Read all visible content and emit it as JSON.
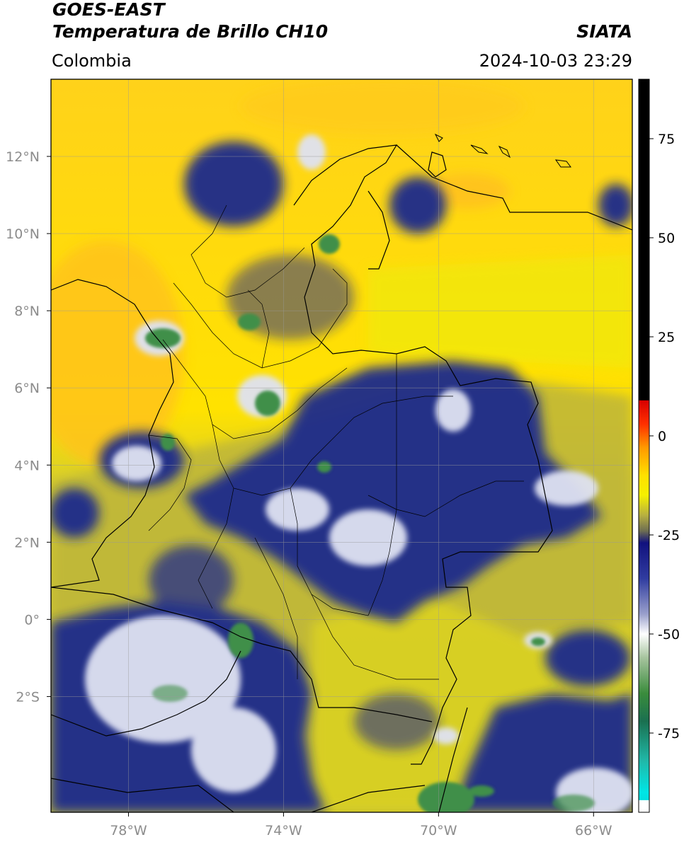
{
  "header": {
    "title_line1": "GOES-EAST",
    "title_line2": "Temperatura de Brillo CH10",
    "brand": "SIATA",
    "region": "Colombia",
    "timestamp": "2024-10-03 23:29"
  },
  "map": {
    "lon_range": [
      -80,
      -65
    ],
    "lat_range": [
      -5,
      14
    ],
    "lon_ticks": [
      {
        "value": -78,
        "label": "78°W"
      },
      {
        "value": -74,
        "label": "74°W"
      },
      {
        "value": -70,
        "label": "70°W"
      },
      {
        "value": -66,
        "label": "66°W"
      }
    ],
    "lat_ticks": [
      {
        "value": 12,
        "label": "12°N"
      },
      {
        "value": 10,
        "label": "10°N"
      },
      {
        "value": 8,
        "label": "8°N"
      },
      {
        "value": 6,
        "label": "6°N"
      },
      {
        "value": 4,
        "label": "4°N"
      },
      {
        "value": 2,
        "label": "2°N"
      },
      {
        "value": 0,
        "label": "0°"
      },
      {
        "value": -2,
        "label": "2°S"
      }
    ],
    "colors": {
      "warm_background": "#ffd21a",
      "mid_olive": "#b9b23a",
      "cold_blue": "#1e2a8c",
      "very_cold_white": "#eef0f8",
      "coldest_green": "#3f8f4a"
    }
  },
  "colorbar": {
    "range": [
      -95,
      90
    ],
    "ticks": [
      {
        "value": 75,
        "label": "75"
      },
      {
        "value": 50,
        "label": "50"
      },
      {
        "value": 25,
        "label": "25"
      },
      {
        "value": 0,
        "label": "0"
      },
      {
        "value": -25,
        "label": "-25"
      },
      {
        "value": -50,
        "label": "-50"
      },
      {
        "value": -75,
        "label": "-75"
      }
    ],
    "stops": [
      {
        "value": 90,
        "color": "#000000"
      },
      {
        "value": 9,
        "color": "#000000"
      },
      {
        "value": 8.9,
        "color": "#d80000"
      },
      {
        "value": 3,
        "color": "#ff3000"
      },
      {
        "value": -3,
        "color": "#ff9a00"
      },
      {
        "value": -10,
        "color": "#ffe000"
      },
      {
        "value": -15,
        "color": "#f5f000"
      },
      {
        "value": -20,
        "color": "#b8b040"
      },
      {
        "value": -24,
        "color": "#6e6e52"
      },
      {
        "value": -27,
        "color": "#11117e"
      },
      {
        "value": -36,
        "color": "#303ca0"
      },
      {
        "value": -45,
        "color": "#9aa0cc"
      },
      {
        "value": -50,
        "color": "#ffffff"
      },
      {
        "value": -56,
        "color": "#a6c49e"
      },
      {
        "value": -65,
        "color": "#3a8c3c"
      },
      {
        "value": -72,
        "color": "#1a7050"
      },
      {
        "value": -82,
        "color": "#20b8a8"
      },
      {
        "value": -90,
        "color": "#00e6e6"
      },
      {
        "value": -91.9,
        "color": "#00e0e0"
      },
      {
        "value": -92,
        "color": "#ffffff"
      },
      {
        "value": -95,
        "color": "#ffffff"
      }
    ]
  }
}
